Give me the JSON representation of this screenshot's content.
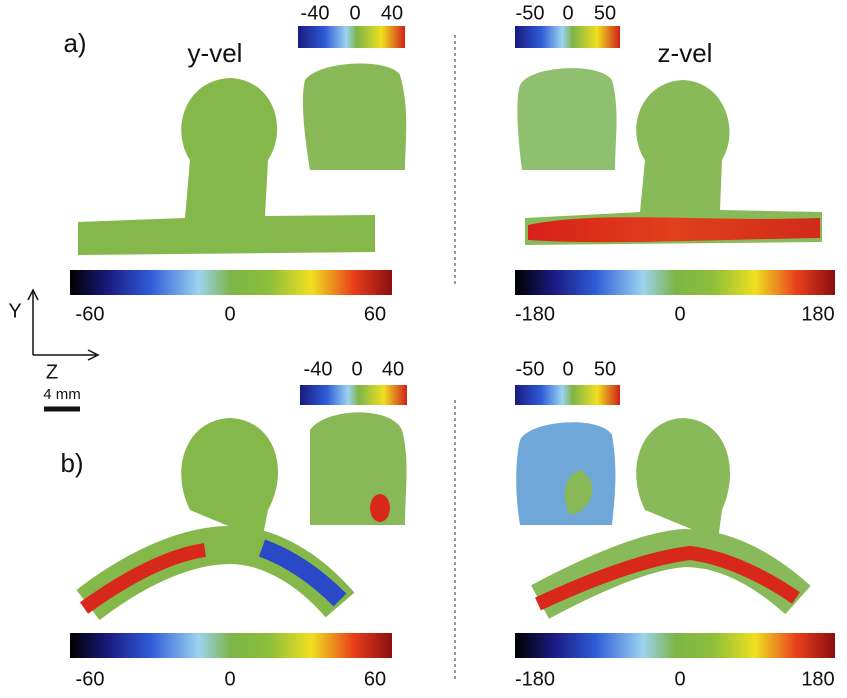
{
  "panels": [
    {
      "label": "a)",
      "plots": [
        {
          "title": "y-vel",
          "inset_colorbar": [
            -40,
            0,
            40
          ],
          "main_colorbar": [
            -60,
            0,
            60
          ]
        },
        {
          "title": "z-vel",
          "inset_colorbar": [
            -50,
            0,
            50
          ],
          "main_colorbar": [
            -180,
            0,
            180
          ]
        }
      ]
    },
    {
      "label": "b)",
      "plots": [
        {
          "inset_colorbar": [
            -40,
            0,
            40
          ],
          "main_colorbar": [
            -60,
            0,
            60
          ]
        },
        {
          "inset_colorbar": [
            -50,
            0,
            50
          ],
          "main_colorbar": [
            -180,
            0,
            180
          ]
        }
      ]
    }
  ],
  "axes": {
    "vertical": "Y",
    "horizontal": "Z",
    "scale": "4 mm"
  }
}
